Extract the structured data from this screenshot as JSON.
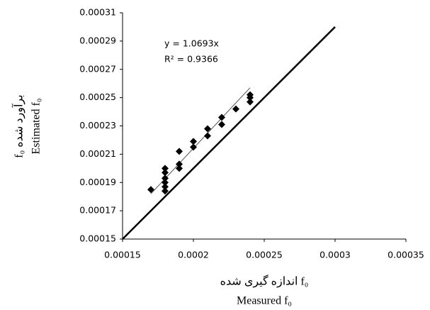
{
  "chart_data": {
    "type": "scatter",
    "x": [
      0.00017,
      0.00018,
      0.00018,
      0.00018,
      0.00018,
      0.00018,
      0.00018,
      0.00019,
      0.00019,
      0.00019,
      0.0002,
      0.0002,
      0.00021,
      0.00021,
      0.00022,
      0.00022,
      0.00023,
      0.00024,
      0.00024,
      0.00024
    ],
    "values": [
      0.000185,
      0.0002,
      0.000197,
      0.000193,
      0.00019,
      0.000187,
      0.000184,
      0.000212,
      0.000203,
      0.0002,
      0.000219,
      0.000215,
      0.000228,
      0.000223,
      0.000236,
      0.000231,
      0.000242,
      0.000252,
      0.00025,
      0.000247
    ],
    "color": "#000000",
    "xlim": [
      0.00015,
      0.00035
    ],
    "xticks": [
      0.00015,
      0.0002,
      0.00025,
      0.0003,
      0.00035
    ],
    "ylim": [
      0.00015,
      0.00031
    ],
    "yticks": [
      0.00015,
      0.00017,
      0.00019,
      0.00021,
      0.00023,
      0.00025,
      0.00027,
      0.00029,
      0.00031
    ],
    "grid": false,
    "trendline": {
      "x": [
        0.00017,
        0.00024
      ],
      "y": [
        0.000182,
        0.000257
      ]
    },
    "reference_line": {
      "x": [
        0.00015,
        0.0003
      ],
      "y": [
        0.00015,
        0.0003
      ]
    },
    "equation": "y = 1.0693x",
    "r_squared": "R² = 0.9366",
    "y_label": [
      "برآورد شده f₀",
      "Estimated f₀"
    ],
    "x_label": [
      "f₀ اندازه گیری شده",
      "Measured f₀"
    ]
  }
}
